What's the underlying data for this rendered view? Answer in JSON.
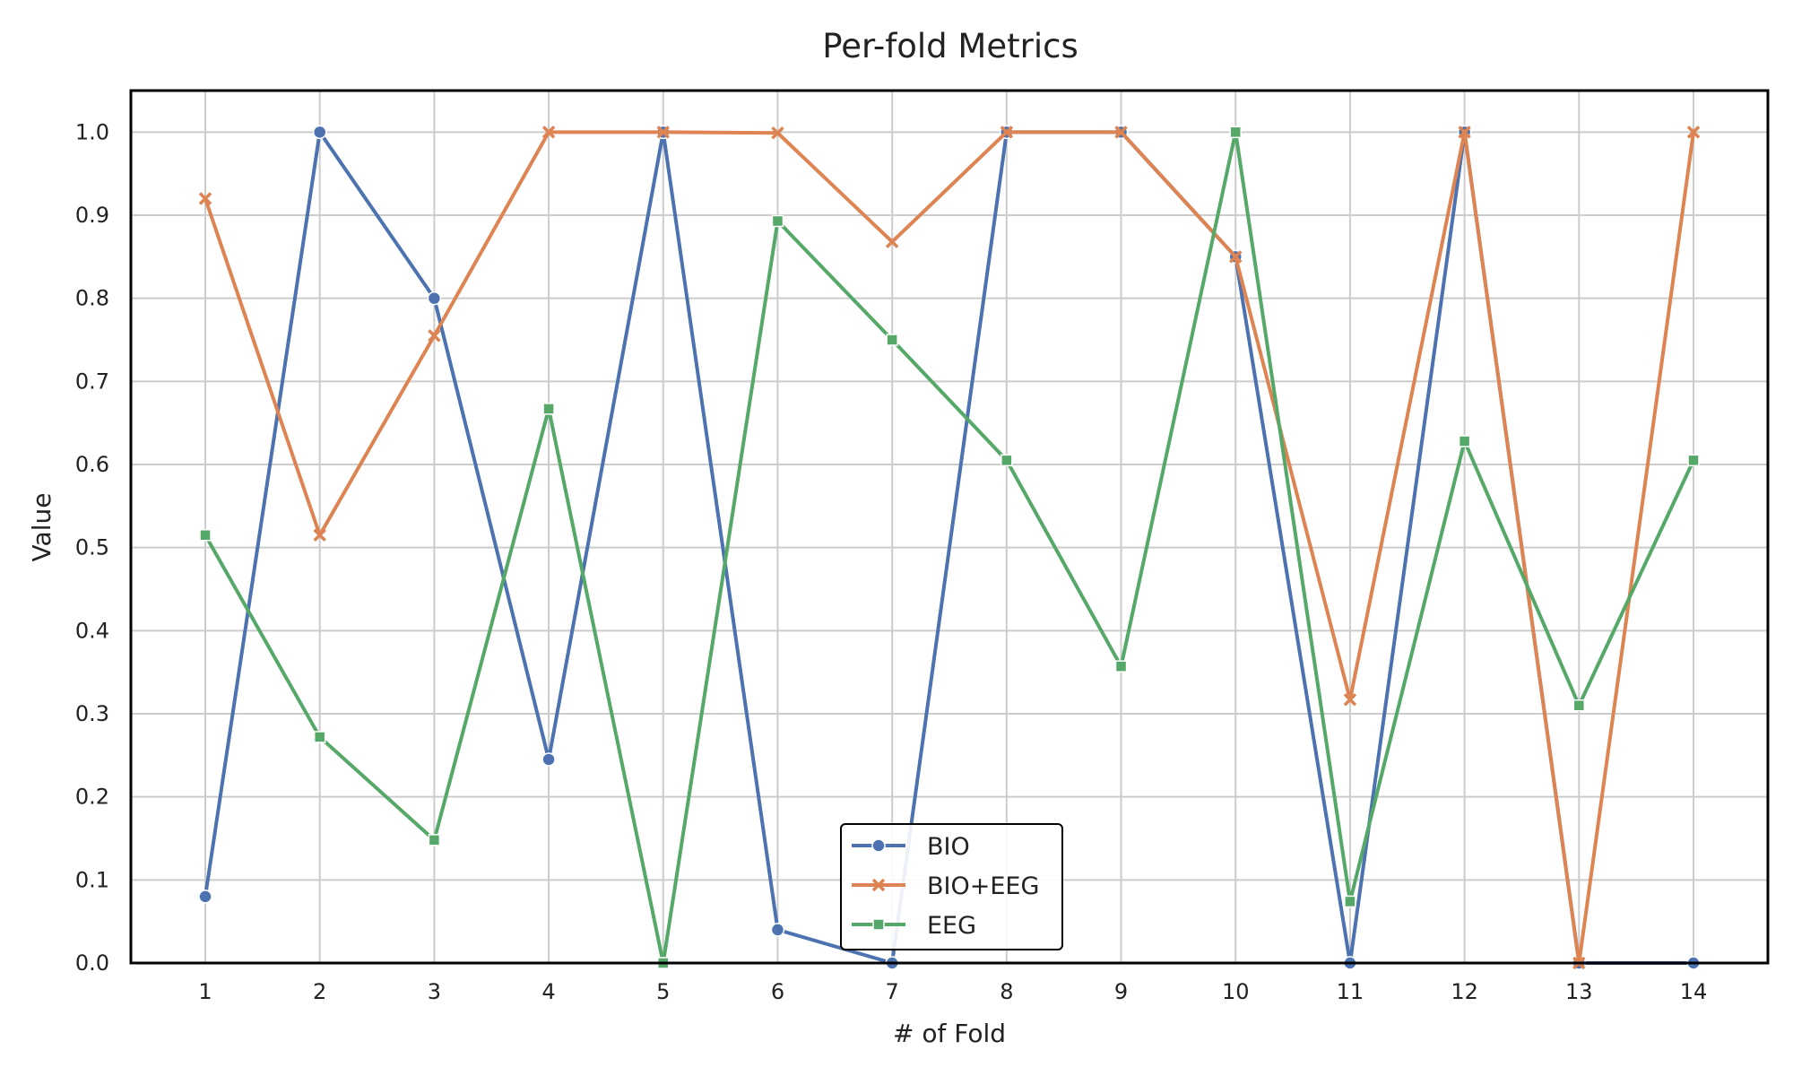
{
  "chart_data": {
    "type": "line",
    "title": "Per-fold Metrics",
    "xlabel": "# of Fold",
    "ylabel": "Value",
    "x": [
      1,
      2,
      3,
      4,
      5,
      6,
      7,
      8,
      9,
      10,
      11,
      12,
      13,
      14
    ],
    "x_tick_labels": [
      "1",
      "2",
      "3",
      "4",
      "5",
      "6",
      "7",
      "8",
      "9",
      "10",
      "11",
      "12",
      "13",
      "14"
    ],
    "xlim": [
      0.35,
      14.65
    ],
    "ylim": [
      0.0,
      1.05
    ],
    "y_ticks": [
      0.0,
      0.1,
      0.2,
      0.3,
      0.4,
      0.5,
      0.6,
      0.7,
      0.8,
      0.9,
      1.0
    ],
    "y_tick_labels": [
      "0.0",
      "0.1",
      "0.2",
      "0.3",
      "0.4",
      "0.5",
      "0.6",
      "0.7",
      "0.8",
      "0.9",
      "1.0"
    ],
    "grid": true,
    "legend_position": "bottom-center",
    "series": [
      {
        "name": "BIO",
        "color": "#4c72b0",
        "marker": "circle",
        "values": [
          0.08,
          1.0,
          0.8,
          0.245,
          1.0,
          0.04,
          0.0,
          1.0,
          1.0,
          0.85,
          0.0,
          1.0,
          0.0,
          0.0
        ]
      },
      {
        "name": "BIO+EEG",
        "color": "#dd8452",
        "marker": "x",
        "values": [
          0.92,
          0.515,
          0.755,
          1.0,
          1.0,
          0.999,
          0.868,
          1.0,
          1.0,
          0.85,
          0.317,
          1.0,
          0.0,
          1.0
        ]
      },
      {
        "name": "EEG",
        "color": "#55a868",
        "marker": "square",
        "values": [
          0.515,
          0.272,
          0.148,
          0.667,
          0.0,
          0.893,
          0.75,
          0.605,
          0.357,
          1.0,
          0.074,
          0.628,
          0.31,
          0.605
        ]
      }
    ]
  }
}
